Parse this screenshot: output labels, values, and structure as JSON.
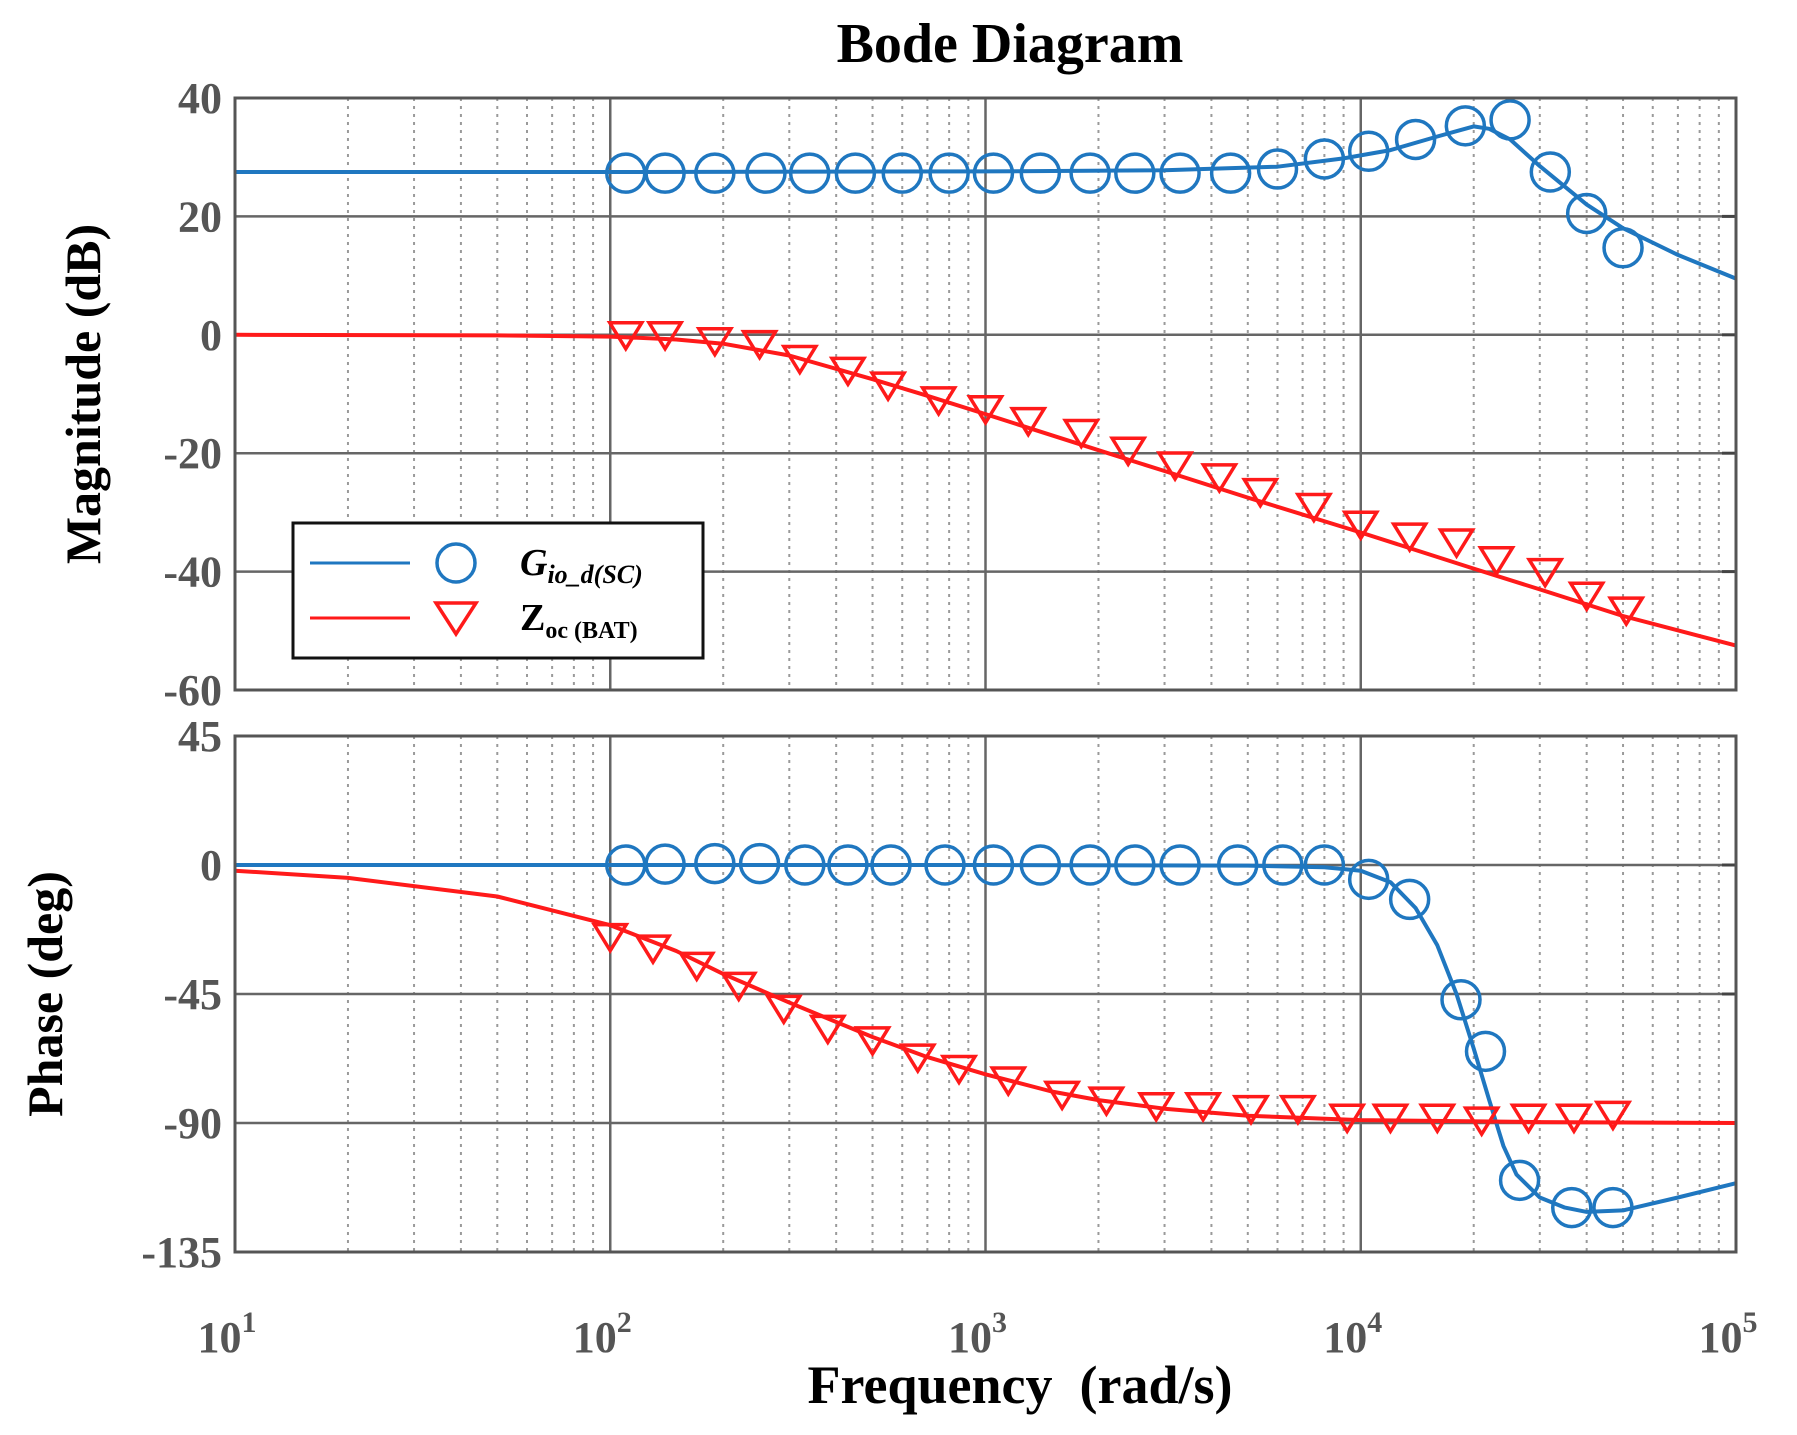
{
  "chart_data": {
    "type": "line",
    "title": "Bode Diagram",
    "xlabel": "Frequency  (rad/s)",
    "xscale": "log",
    "xlim": [
      10,
      100000
    ],
    "x_ticks": [
      {
        "value": 10,
        "base": "10",
        "exp": "1"
      },
      {
        "value": 100,
        "base": "10",
        "exp": "2"
      },
      {
        "value": 1000,
        "base": "10",
        "exp": "3"
      },
      {
        "value": 10000,
        "base": "10",
        "exp": "4"
      },
      {
        "value": 100000,
        "base": "10",
        "exp": "5"
      }
    ],
    "grid": true,
    "legend_position": "center-left of magnitude panel",
    "colors": {
      "gio": "#1f77c0",
      "zoc": "#ff1a1a",
      "axes": "#555555",
      "grid": "#9a9a9a"
    },
    "legend": [
      {
        "series": "gio",
        "main": "G",
        "sub": "io_d(SC)",
        "italic": true
      },
      {
        "series": "zoc",
        "main": "Z",
        "sub": "oc (BAT)",
        "italic": false
      }
    ],
    "panels": [
      {
        "id": "magnitude",
        "ylabel": "Magnitude (dB)",
        "ylim": [
          -60,
          40
        ],
        "yticks": [
          40,
          20,
          0,
          -20,
          -40,
          -60
        ],
        "series": [
          {
            "key": "gio",
            "curve": [
              [
                10,
                27.5
              ],
              [
                100,
                27.5
              ],
              [
                1000,
                27.6
              ],
              [
                3000,
                27.8
              ],
              [
                6000,
                28.4
              ],
              [
                9000,
                29.8
              ],
              [
                12000,
                31.2
              ],
              [
                16000,
                33.5
              ],
              [
                20000,
                35.2
              ],
              [
                22000,
                34.8
              ],
              [
                25000,
                33.0
              ],
              [
                30000,
                28.5
              ],
              [
                40000,
                22.0
              ],
              [
                50000,
                18.0
              ],
              [
                70000,
                13.5
              ],
              [
                100000,
                9.5
              ]
            ],
            "markers": [
              [
                110,
                27.3
              ],
              [
                140,
                27.3
              ],
              [
                190,
                27.3
              ],
              [
                260,
                27.3
              ],
              [
                340,
                27.3
              ],
              [
                450,
                27.3
              ],
              [
                600,
                27.3
              ],
              [
                800,
                27.3
              ],
              [
                1050,
                27.3
              ],
              [
                1400,
                27.3
              ],
              [
                1900,
                27.3
              ],
              [
                2500,
                27.3
              ],
              [
                3300,
                27.3
              ],
              [
                4500,
                27.3
              ],
              [
                6000,
                28.0
              ],
              [
                8000,
                29.7
              ],
              [
                10500,
                31.0
              ],
              [
                14000,
                33.0
              ],
              [
                19000,
                35.3
              ],
              [
                25000,
                36.3
              ],
              [
                32000,
                27.5
              ],
              [
                40000,
                20.5
              ],
              [
                50000,
                14.7
              ]
            ]
          },
          {
            "key": "zoc",
            "curve": [
              [
                10,
                0
              ],
              [
                50,
                -0.1
              ],
              [
                100,
                -0.3
              ],
              [
                150,
                -0.8
              ],
              [
                200,
                -1.5
              ],
              [
                300,
                -3.5
              ],
              [
                500,
                -7.5
              ],
              [
                700,
                -10.3
              ],
              [
                1000,
                -13.4
              ],
              [
                2000,
                -19.5
              ],
              [
                3000,
                -23
              ],
              [
                5000,
                -27.5
              ],
              [
                10000,
                -33.4
              ],
              [
                20000,
                -39.5
              ],
              [
                30000,
                -43
              ],
              [
                50000,
                -47.5
              ],
              [
                100000,
                -52.5
              ]
            ],
            "markers": [
              [
                110,
                0
              ],
              [
                140,
                0
              ],
              [
                190,
                -1
              ],
              [
                250,
                -1.5
              ],
              [
                320,
                -4
              ],
              [
                430,
                -6
              ],
              [
                550,
                -8.5
              ],
              [
                750,
                -11
              ],
              [
                1000,
                -12.5
              ],
              [
                1300,
                -14.5
              ],
              [
                1800,
                -16.5
              ],
              [
                2400,
                -19.5
              ],
              [
                3200,
                -22
              ],
              [
                4200,
                -24
              ],
              [
                5400,
                -26.5
              ],
              [
                7500,
                -29
              ],
              [
                10000,
                -32
              ],
              [
                13500,
                -34
              ],
              [
                18000,
                -35
              ],
              [
                23000,
                -38
              ],
              [
                31000,
                -40
              ],
              [
                40000,
                -44
              ],
              [
                51000,
                -46.5
              ]
            ]
          }
        ]
      },
      {
        "id": "phase",
        "ylabel": "Phase (deg)",
        "ylim": [
          -135,
          45
        ],
        "yticks": [
          45,
          0,
          -45,
          -90,
          -135
        ],
        "series": [
          {
            "key": "gio",
            "curve": [
              [
                10,
                0
              ],
              [
                1000,
                0
              ],
              [
                5000,
                -0.2
              ],
              [
                8000,
                -0.8
              ],
              [
                10000,
                -2
              ],
              [
                12000,
                -6
              ],
              [
                14000,
                -15
              ],
              [
                16000,
                -28
              ],
              [
                18000,
                -45
              ],
              [
                20000,
                -64
              ],
              [
                22000,
                -82
              ],
              [
                24000,
                -98
              ],
              [
                26000,
                -108
              ],
              [
                30000,
                -116
              ],
              [
                35000,
                -119.5
              ],
              [
                40000,
                -121
              ],
              [
                50000,
                -120.5
              ],
              [
                70000,
                -116
              ],
              [
                100000,
                -111
              ]
            ],
            "markers": [
              [
                110,
                0
              ],
              [
                140,
                0.3
              ],
              [
                190,
                0.5
              ],
              [
                250,
                0.5
              ],
              [
                330,
                0
              ],
              [
                430,
                0
              ],
              [
                560,
                0
              ],
              [
                780,
                0
              ],
              [
                1050,
                0
              ],
              [
                1400,
                0
              ],
              [
                1900,
                0
              ],
              [
                2500,
                0
              ],
              [
                3300,
                0
              ],
              [
                4700,
                0
              ],
              [
                6200,
                0
              ],
              [
                8000,
                0
              ],
              [
                10500,
                -5
              ],
              [
                13500,
                -12
              ],
              [
                18500,
                -47
              ],
              [
                21500,
                -65
              ],
              [
                26500,
                -110
              ],
              [
                36500,
                -119.5
              ],
              [
                47000,
                -119.5
              ]
            ]
          },
          {
            "key": "zoc",
            "curve": [
              [
                10,
                -2
              ],
              [
                20,
                -4.5
              ],
              [
                50,
                -11
              ],
              [
                100,
                -21
              ],
              [
                150,
                -30
              ],
              [
                200,
                -38
              ],
              [
                300,
                -48
              ],
              [
                500,
                -60
              ],
              [
                700,
                -67
              ],
              [
                1000,
                -73
              ],
              [
                1500,
                -79
              ],
              [
                2000,
                -82
              ],
              [
                3000,
                -85
              ],
              [
                5000,
                -87.5
              ],
              [
                10000,
                -89
              ],
              [
                30000,
                -89.7
              ],
              [
                100000,
                -90
              ]
            ],
            "markers": [
              [
                100,
                -25
              ],
              [
                130,
                -29
              ],
              [
                170,
                -35
              ],
              [
                220,
                -42
              ],
              [
                290,
                -50
              ],
              [
                380,
                -57
              ],
              [
                500,
                -61
              ],
              [
                660,
                -67
              ],
              [
                850,
                -71
              ],
              [
                1150,
                -75
              ],
              [
                1600,
                -80
              ],
              [
                2100,
                -82
              ],
              [
                2850,
                -84
              ],
              [
                3800,
                -84
              ],
              [
                5100,
                -85
              ],
              [
                6800,
                -85
              ],
              [
                9200,
                -88
              ],
              [
                12000,
                -88
              ],
              [
                16000,
                -88
              ],
              [
                21000,
                -89
              ],
              [
                28000,
                -88
              ],
              [
                37000,
                -88
              ],
              [
                47000,
                -87
              ]
            ]
          }
        ]
      }
    ]
  }
}
